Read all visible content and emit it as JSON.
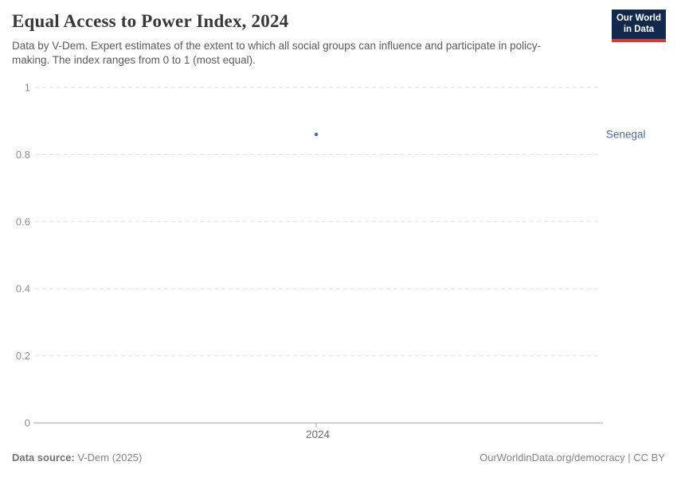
{
  "header": {
    "title": "Equal Access to Power Index, 2024",
    "subtitle": "Data by V-Dem. Expert estimates of the extent to which all social groups can influence and participate in policy-making. The index ranges from 0 to 1 (most equal).",
    "logo": {
      "line1": "Our World",
      "line2": "in Data",
      "bg_color": "#13294b",
      "bar_color": "#d13d33"
    }
  },
  "chart_data": {
    "type": "scatter",
    "title": "Equal Access to Power Index, 2024",
    "x": [
      2024
    ],
    "series": [
      {
        "name": "Senegal",
        "values": [
          0.86
        ],
        "color": "#4d6b9e"
      }
    ],
    "xlabel": "",
    "ylabel": "",
    "ylim": [
      0,
      1
    ],
    "yticks": [
      0,
      0.2,
      0.4,
      0.6,
      0.8,
      1
    ],
    "ytick_labels": [
      "0",
      "0.2",
      "0.4",
      "0.6",
      "0.8",
      "1"
    ],
    "xticks": [
      "2024"
    ],
    "grid": "horizontal-dashed",
    "legend_position": "right-entity-label",
    "entity_label": "Senegal",
    "colors": {
      "gridline": "#dedede",
      "axis": "#a1a1a1",
      "tick_label": "#8e8e8e",
      "xtick_label": "#6e6e6e"
    }
  },
  "footer": {
    "source_label": "Data source:",
    "source_value": "V-Dem (2025)",
    "attribution": "OurWorldinData.org/democracy | CC BY"
  }
}
